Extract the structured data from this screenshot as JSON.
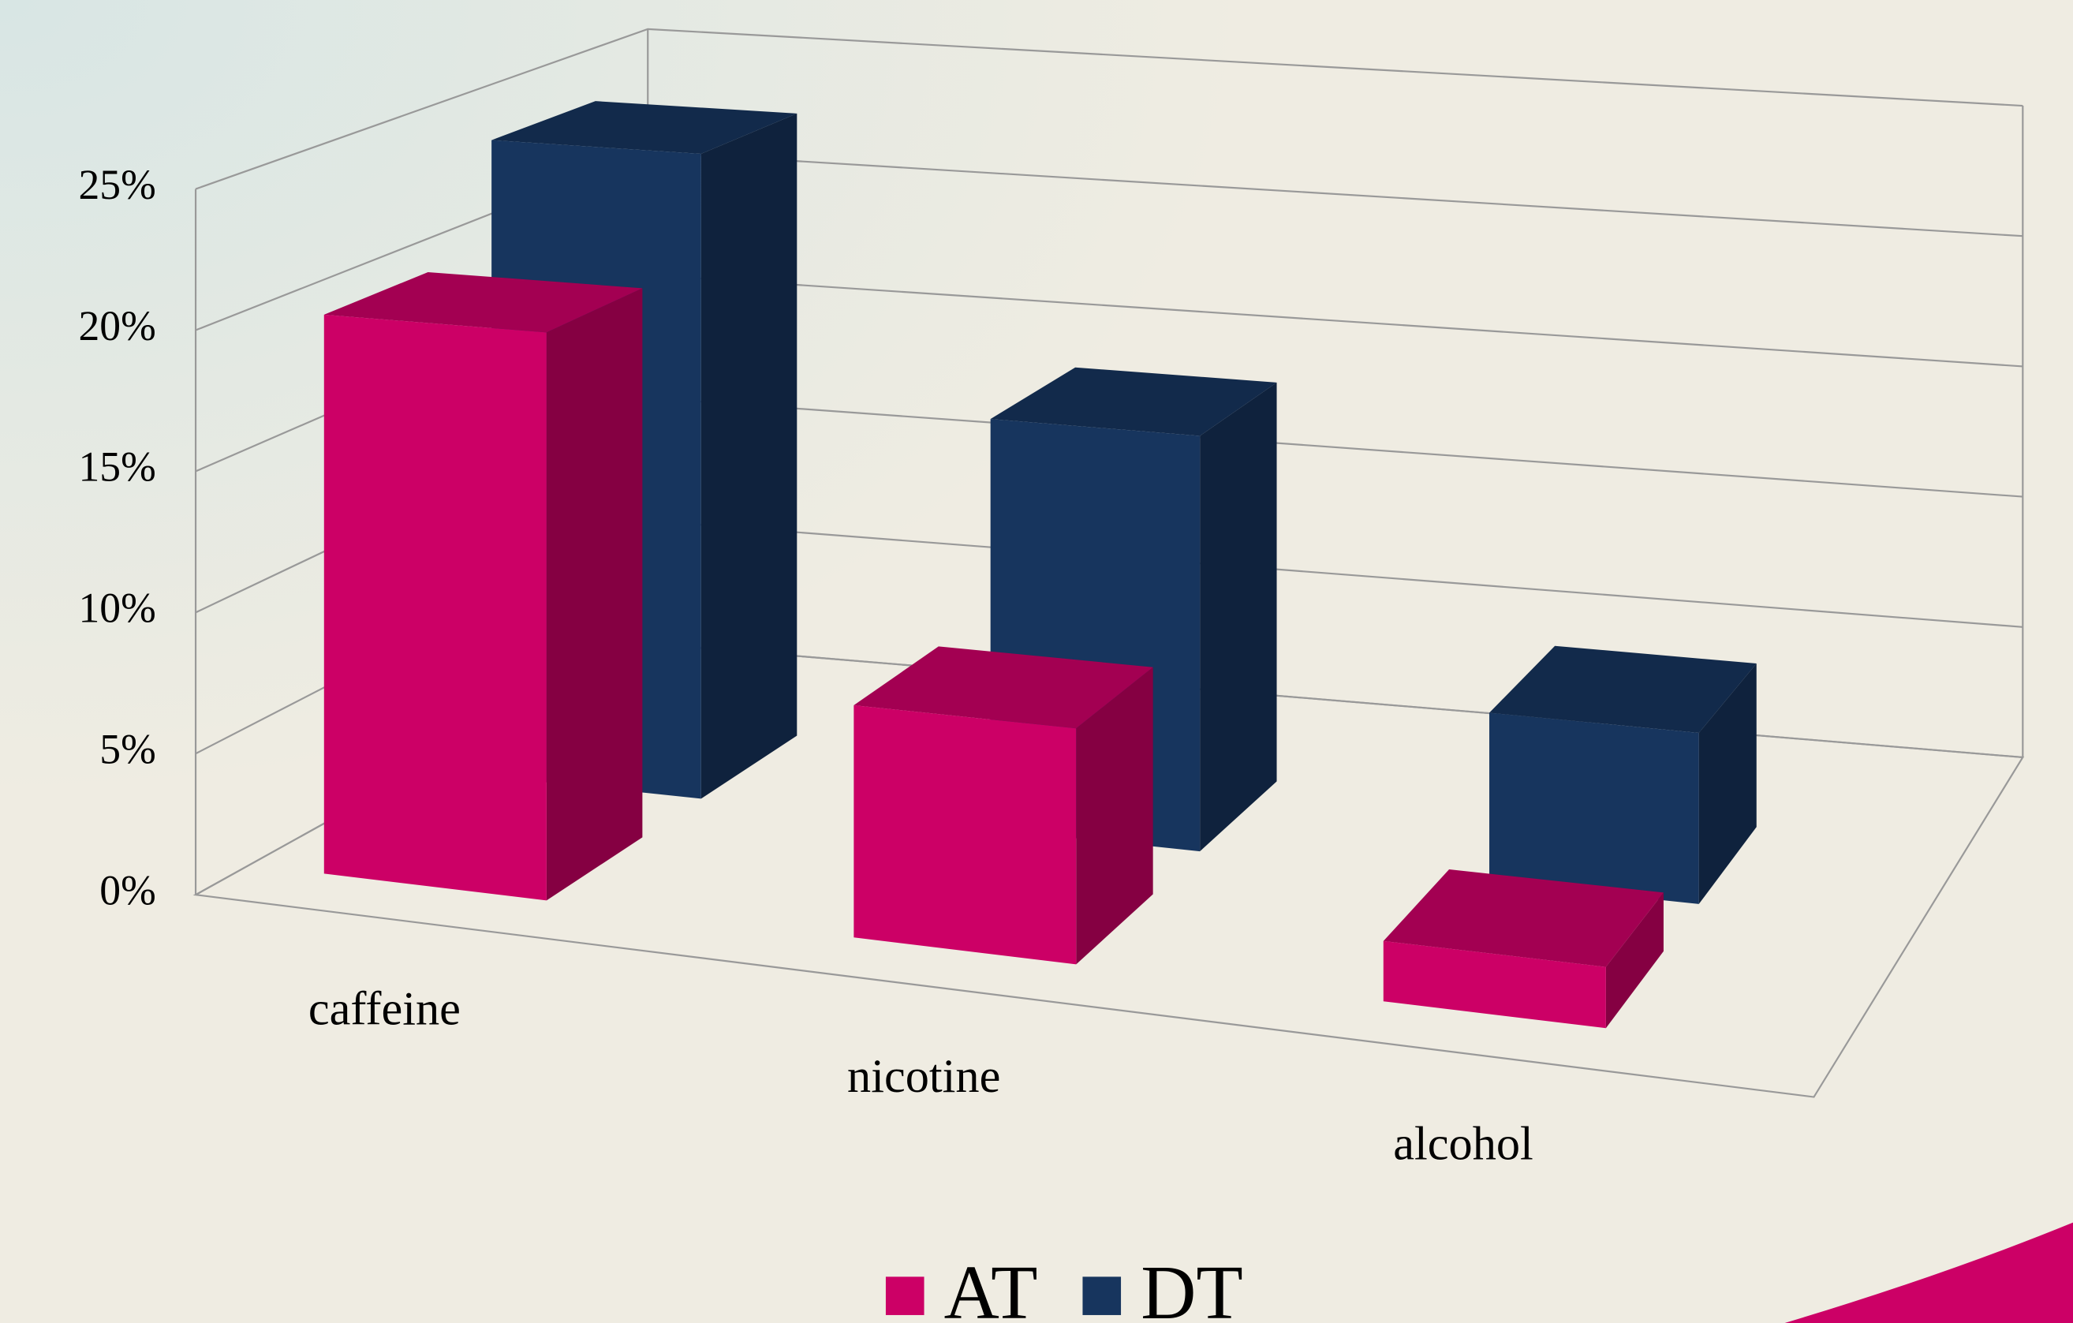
{
  "chart_data": {
    "type": "bar3d",
    "categories": [
      "caffeine",
      "nicotine",
      "alcohol"
    ],
    "series": [
      {
        "name": "AT",
        "color": "#cc0066",
        "values": [
          20,
          8,
          2
        ]
      },
      {
        "name": "DT",
        "color": "#17355e",
        "values": [
          24,
          15,
          6
        ]
      }
    ],
    "ylim": [
      0,
      25
    ],
    "yticks": [
      {
        "value": 0,
        "label": "0%"
      },
      {
        "value": 5,
        "label": "5%"
      },
      {
        "value": 10,
        "label": "10%"
      },
      {
        "value": 15,
        "label": "15%"
      },
      {
        "value": 20,
        "label": "20%"
      },
      {
        "value": 25,
        "label": "25%"
      }
    ],
    "grid": true,
    "legend": "bottom"
  }
}
